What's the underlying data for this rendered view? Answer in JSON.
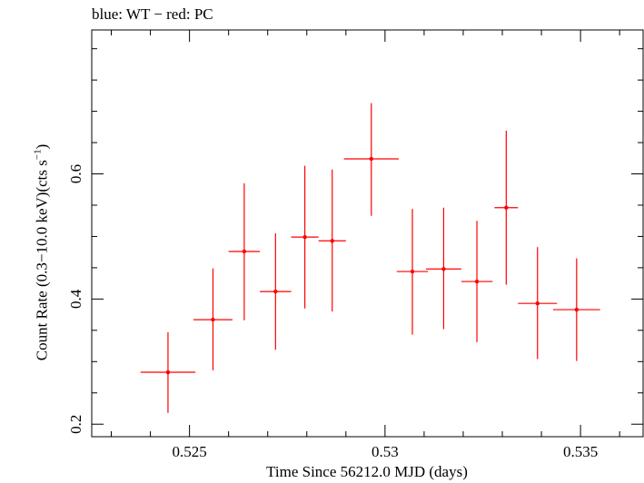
{
  "chart_data": {
    "type": "scatter",
    "title": "blue: WT − red: PC",
    "xlabel": "Time Since 56212.0 MJD (days)",
    "ylabel_main": "Count Rate (0.3−10.0 keV)(cts s",
    "ylabel_sup": "−1",
    "ylabel_end": ")",
    "xlim": [
      0.5225,
      0.5366
    ],
    "ylim": [
      0.18,
      0.83
    ],
    "x_ticks": [
      {
        "value": 0.525,
        "label": "0.525"
      },
      {
        "value": 0.53,
        "label": "0.53"
      },
      {
        "value": 0.535,
        "label": "0.535"
      }
    ],
    "y_ticks": [
      {
        "value": 0.2,
        "label": "0.2"
      },
      {
        "value": 0.4,
        "label": "0.4"
      },
      {
        "value": 0.6,
        "label": "0.6"
      }
    ],
    "series": [
      {
        "color": "#ff0000",
        "points": [
          {
            "x": 0.52445,
            "xerr": 0.0007,
            "y": 0.283,
            "ylo": 0.218,
            "yhi": 0.347
          },
          {
            "x": 0.5256,
            "xerr": 0.0005,
            "y": 0.367,
            "ylo": 0.286,
            "yhi": 0.449
          },
          {
            "x": 0.5264,
            "xerr": 0.0004,
            "y": 0.476,
            "ylo": 0.366,
            "yhi": 0.585
          },
          {
            "x": 0.5272,
            "xerr": 0.0004,
            "y": 0.412,
            "ylo": 0.319,
            "yhi": 0.505
          },
          {
            "x": 0.52795,
            "xerr": 0.00035,
            "y": 0.499,
            "ylo": 0.385,
            "yhi": 0.613
          },
          {
            "x": 0.52865,
            "xerr": 0.00035,
            "y": 0.493,
            "ylo": 0.38,
            "yhi": 0.607
          },
          {
            "x": 0.52965,
            "xerr": 0.0007,
            "y": 0.624,
            "ylo": 0.533,
            "yhi": 0.713
          },
          {
            "x": 0.5307,
            "xerr": 0.0004,
            "y": 0.444,
            "ylo": 0.343,
            "yhi": 0.544
          },
          {
            "x": 0.5315,
            "xerr": 0.00045,
            "y": 0.448,
            "ylo": 0.352,
            "yhi": 0.546
          },
          {
            "x": 0.53235,
            "xerr": 0.0004,
            "y": 0.428,
            "ylo": 0.331,
            "yhi": 0.525
          },
          {
            "x": 0.5331,
            "xerr": 0.0003,
            "y": 0.546,
            "ylo": 0.423,
            "yhi": 0.669
          },
          {
            "x": 0.5339,
            "xerr": 0.0005,
            "y": 0.393,
            "ylo": 0.304,
            "yhi": 0.483
          },
          {
            "x": 0.5349,
            "xerr": 0.0006,
            "y": 0.383,
            "ylo": 0.301,
            "yhi": 0.465
          }
        ]
      }
    ]
  }
}
